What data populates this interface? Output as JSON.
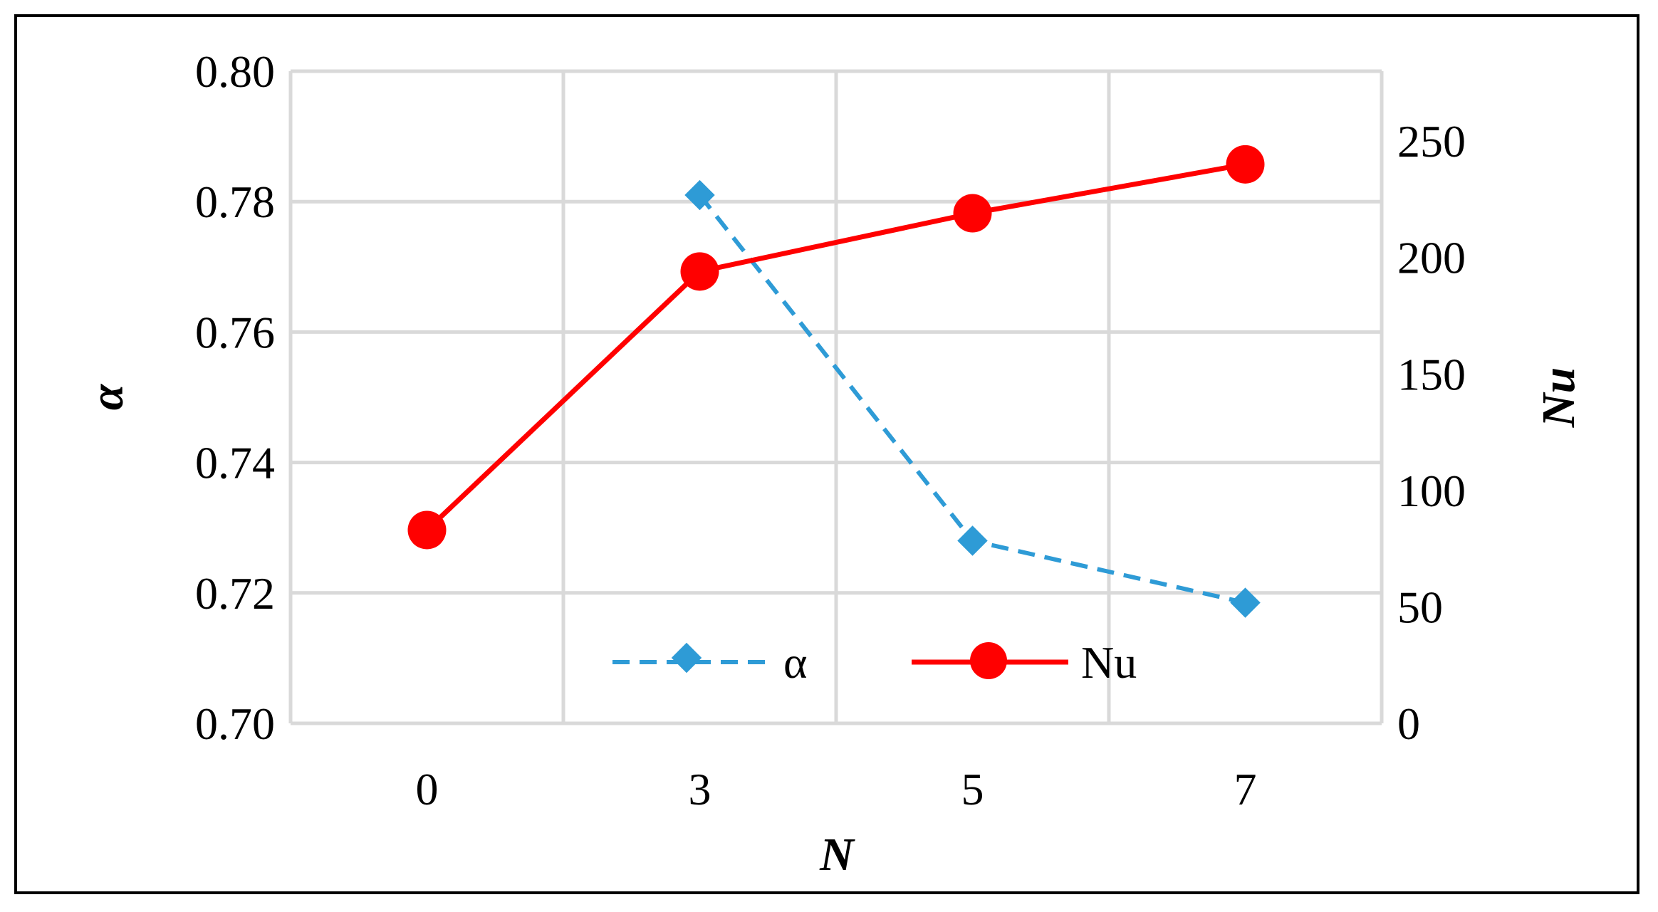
{
  "chart_data": {
    "type": "line",
    "categories": [
      "0",
      "3",
      "5",
      "7"
    ],
    "xlabel": "N",
    "ylabel_left": "α",
    "ylabel_right": "Nu",
    "ylim_left": [
      0.7,
      0.8
    ],
    "yticks_left": [
      "0.70",
      "0.72",
      "0.74",
      "0.76",
      "0.78",
      "0.80"
    ],
    "ylim_right": [
      0,
      280
    ],
    "yticks_right": [
      "0",
      "50",
      "100",
      "150",
      "200",
      "250"
    ],
    "grid": true,
    "legend_position": "bottom-center",
    "series": [
      {
        "name": "α",
        "axis": "left",
        "values": [
          null,
          0.781,
          0.728,
          0.7185
        ],
        "color": "#2E9BD6",
        "style": "dashed",
        "marker": "diamond"
      },
      {
        "name": "Nu",
        "axis": "right",
        "values": [
          83,
          194,
          219,
          240
        ],
        "color": "#FF0000",
        "style": "solid",
        "marker": "circle"
      }
    ]
  }
}
